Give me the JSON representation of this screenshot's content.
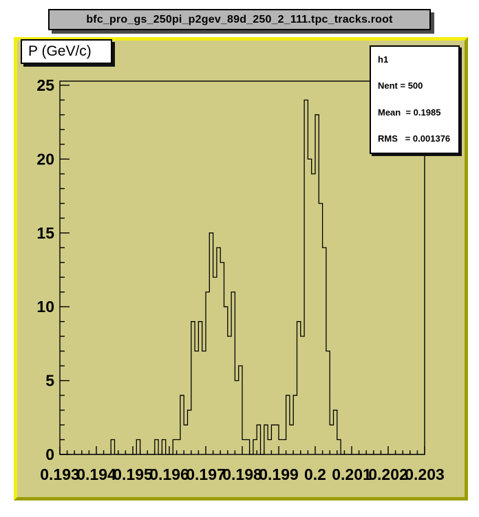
{
  "window": {
    "title": "bfc_pro_gs_250pi_p2gev_89d_250_2_111.tpc_tracks.root"
  },
  "axis_label_box": {
    "text": "P (GeV/c)"
  },
  "stats_box": {
    "hist_name": "h1",
    "entries_line": "Nent = 500   ",
    "mean_line": "Mean  = 0.1985",
    "rms_line": "RMS   = 0.001376"
  },
  "colors": {
    "canvas_background": "#d0cc86",
    "canvas_border_light": "#f2ee12",
    "canvas_border_dark": "#9d9d08",
    "titlebar_gray": "#b5b5b5",
    "line_black": "#000000",
    "box_white": "#ffffff"
  },
  "chart_data": {
    "type": "bar",
    "subtype": "root-histogram-outline",
    "title": "",
    "xlabel": "P (GeV/c)",
    "ylabel": "",
    "x_start": 0.193,
    "x_end": 0.203,
    "bin_width": 0.0001,
    "n_bins": 100,
    "ylim": [
      0,
      25.3
    ],
    "grid": false,
    "legend": "none",
    "x_tick_labels": [
      "0.193",
      "0.194",
      "0.195",
      "0.196",
      "0.197",
      "0.198",
      "0.199",
      "0.2",
      "0.201",
      "0.202",
      "0.203"
    ],
    "y_tick_labels": [
      "0",
      "5",
      "10",
      "15",
      "20",
      "25"
    ],
    "y_major_step": 5,
    "y_minor_step": 1,
    "x_major_step": 0.001,
    "x_minor_step": 0.0002,
    "stats": {
      "name": "h1",
      "entries": 500,
      "mean": 0.1985,
      "rms": 0.001376
    },
    "bins": [
      0,
      0,
      0,
      0,
      0,
      0,
      0,
      0,
      0,
      0,
      0,
      0,
      0,
      0,
      1,
      0,
      0,
      0,
      0,
      0,
      0,
      1,
      0,
      0,
      0,
      0,
      1,
      0,
      1,
      0,
      0,
      1,
      1,
      4,
      2,
      3,
      9,
      7,
      9,
      7,
      11,
      15,
      12,
      14,
      13,
      10,
      8,
      11,
      5,
      6,
      1,
      1,
      0,
      1,
      2,
      0,
      2,
      1,
      2,
      2,
      1,
      1,
      4,
      2,
      4,
      9,
      8,
      24,
      20,
      19,
      23,
      17,
      14,
      7,
      2,
      3,
      1,
      0,
      0,
      0,
      0,
      0,
      0,
      0,
      0,
      0,
      0,
      0,
      0,
      0,
      0,
      0,
      0,
      0,
      0,
      0,
      0,
      0,
      0,
      0
    ]
  }
}
